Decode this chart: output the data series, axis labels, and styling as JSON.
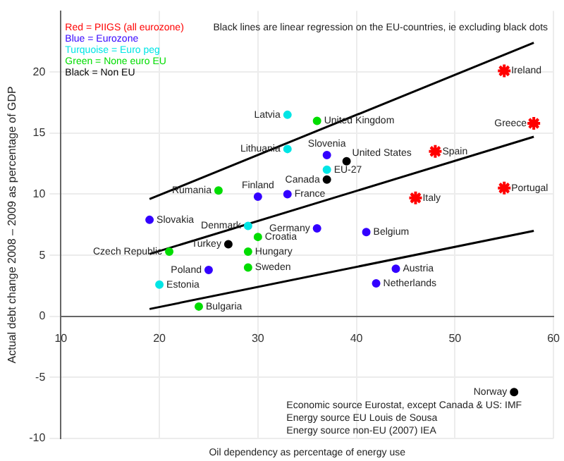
{
  "chart_data": {
    "type": "scatter",
    "xlabel": "Oil dependency as percentage of energy use",
    "ylabel": "Actual debt change 2008 – 2009 as percentage of GDP",
    "xlim": [
      10,
      60
    ],
    "xticks": [
      10,
      20,
      30,
      40,
      50,
      60
    ],
    "ylim": [
      -10,
      25
    ],
    "yticks": [
      -10,
      -5,
      0,
      5,
      10,
      15,
      20
    ],
    "grid": true,
    "legend": "top left",
    "series": [
      {
        "name": "Red = PIIGS (all eurozone)",
        "color": "#ff0000",
        "marker": "cross",
        "x": [
          55,
          58,
          48,
          46,
          55
        ],
        "values": [
          20.1,
          15.8,
          13.5,
          9.7,
          10.5
        ]
      },
      {
        "name": "Blue = Eurozone",
        "color": "#3300ff",
        "marker": "circle",
        "x": [
          19,
          30,
          37,
          33,
          36,
          41,
          44,
          42,
          25
        ],
        "values": [
          7.9,
          9.8,
          13.2,
          10.0,
          7.2,
          6.9,
          3.9,
          2.7,
          3.8
        ]
      },
      {
        "name": "Turquoise = Euro peg",
        "color": "#00e5e5",
        "marker": "circle",
        "x": [
          33,
          33,
          37,
          29,
          20
        ],
        "values": [
          16.5,
          13.7,
          12.0,
          7.4,
          2.6
        ]
      },
      {
        "name": "Green = None euro EU",
        "color": "#00dd00",
        "marker": "circle",
        "x": [
          36,
          26,
          21,
          29,
          29,
          24,
          30
        ],
        "values": [
          16.0,
          10.3,
          5.3,
          5.3,
          4.0,
          0.8,
          6.5
        ]
      },
      {
        "name": "Black = Non EU",
        "color": "#000000",
        "marker": "circle",
        "x": [
          39,
          37,
          27,
          56
        ],
        "values": [
          12.7,
          11.2,
          5.9,
          -6.2
        ]
      },
      {
        "type": "line",
        "color": "#000000",
        "marker": "none",
        "x": [
          19,
          58
        ],
        "values": [
          9.6,
          22.4
        ]
      },
      {
        "type": "line",
        "color": "#000000",
        "marker": "none",
        "x": [
          19,
          58
        ],
        "values": [
          5.1,
          14.7
        ]
      },
      {
        "type": "line",
        "color": "#000000",
        "marker": "none",
        "x": [
          19,
          58
        ],
        "values": [
          0.6,
          7.0
        ]
      }
    ],
    "annotations": [
      "Black lines are linear regression on the EU-countries, ie excluding black dots",
      {
        "text": "Ireland",
        "x": 55,
        "y": 20.1
      },
      {
        "text": "Greece",
        "x": 58,
        "y": 15.8
      },
      {
        "text": "Spain",
        "x": 48,
        "y": 13.5
      },
      {
        "text": "Italy",
        "x": 46,
        "y": 9.7
      },
      {
        "text": "Portugal",
        "x": 55,
        "y": 10.5
      },
      {
        "text": "Slovakia",
        "x": 19,
        "y": 7.9
      },
      {
        "text": "Finland",
        "x": 30,
        "y": 9.8
      },
      {
        "text": "Slovenia",
        "x": 37,
        "y": 13.2
      },
      {
        "text": "France",
        "x": 33,
        "y": 10.0
      },
      {
        "text": "Germany",
        "x": 36,
        "y": 7.2
      },
      {
        "text": "Belgium",
        "x": 41,
        "y": 6.9
      },
      {
        "text": "Austria",
        "x": 44,
        "y": 3.9
      },
      {
        "text": "Netherlands",
        "x": 42,
        "y": 2.7
      },
      {
        "text": "Poland",
        "x": 25,
        "y": 3.8
      },
      {
        "text": "Latvia",
        "x": 33,
        "y": 16.5
      },
      {
        "text": "Lithuania",
        "x": 33,
        "y": 13.7
      },
      {
        "text": "EU-27",
        "x": 37,
        "y": 12.0
      },
      {
        "text": "Denmark",
        "x": 29,
        "y": 7.4
      },
      {
        "text": "Estonia",
        "x": 20,
        "y": 2.6
      },
      {
        "text": "United Kingdom",
        "x": 36,
        "y": 16.0
      },
      {
        "text": "Rumania",
        "x": 26,
        "y": 10.3
      },
      {
        "text": "Czech Republic",
        "x": 21,
        "y": 5.3
      },
      {
        "text": "Hungary",
        "x": 29,
        "y": 5.3
      },
      {
        "text": "Sweden",
        "x": 29,
        "y": 4.0
      },
      {
        "text": "Bulgaria",
        "x": 24,
        "y": 0.8
      },
      {
        "text": "Croatia",
        "x": 30,
        "y": 6.5
      },
      {
        "text": "United States",
        "x": 39,
        "y": 12.7
      },
      {
        "text": "Canada",
        "x": 37,
        "y": 11.2
      },
      {
        "text": "Turkey",
        "x": 27,
        "y": 5.9
      },
      {
        "text": "Norway",
        "x": 56,
        "y": -6.2
      },
      "Economic source Eurostat, except Canada & US: IMF",
      "Energy source EU Louis de Sousa",
      "Energy source non-EU (2007) IEA"
    ]
  }
}
